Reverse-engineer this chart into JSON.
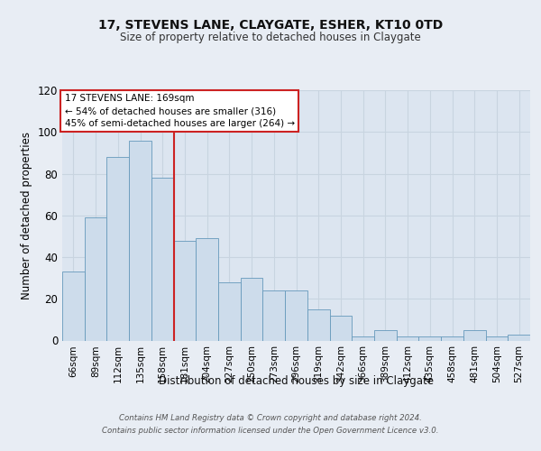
{
  "title": "17, STEVENS LANE, CLAYGATE, ESHER, KT10 0TD",
  "subtitle": "Size of property relative to detached houses in Claygate",
  "xlabel": "Distribution of detached houses by size in Claygate",
  "ylabel": "Number of detached properties",
  "categories": [
    "66sqm",
    "89sqm",
    "112sqm",
    "135sqm",
    "158sqm",
    "181sqm",
    "204sqm",
    "227sqm",
    "250sqm",
    "273sqm",
    "296sqm",
    "319sqm",
    "342sqm",
    "366sqm",
    "389sqm",
    "412sqm",
    "435sqm",
    "458sqm",
    "481sqm",
    "504sqm",
    "527sqm"
  ],
  "values": [
    33,
    59,
    88,
    96,
    78,
    48,
    49,
    28,
    30,
    24,
    24,
    15,
    12,
    2,
    5,
    2,
    2,
    2,
    5,
    2,
    3
  ],
  "bar_color": "#cddceb",
  "bar_edge_color": "#6699bb",
  "vline_x": 4.5,
  "vline_color": "#cc2222",
  "annotation_text": "17 STEVENS LANE: 169sqm\n← 54% of detached houses are smaller (316)\n45% of semi-detached houses are larger (264) →",
  "annotation_box_color": "#ffffff",
  "annotation_box_edge": "#cc2222",
  "ylim": [
    0,
    120
  ],
  "yticks": [
    0,
    20,
    40,
    60,
    80,
    100,
    120
  ],
  "background_color": "#e8edf4",
  "plot_bg_color": "#dce5f0",
  "grid_color": "#c8d4e0",
  "footer_line1": "Contains HM Land Registry data © Crown copyright and database right 2024.",
  "footer_line2": "Contains public sector information licensed under the Open Government Licence v3.0."
}
